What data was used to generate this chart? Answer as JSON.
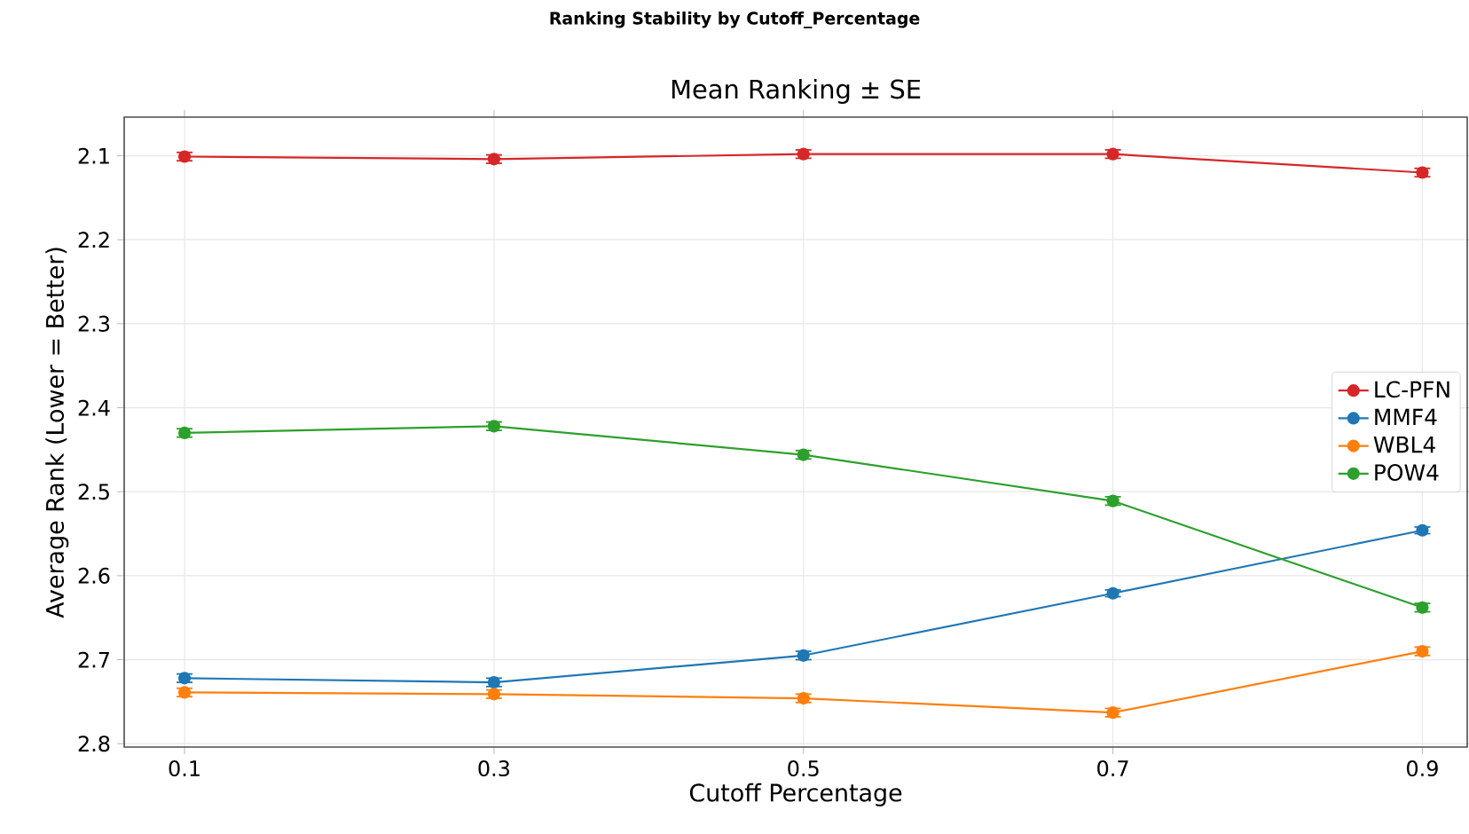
{
  "chart_data": {
    "type": "line",
    "title": "Ranking Stability by Cutoff_Percentage",
    "subtitle": "Mean Ranking ± SE",
    "xlabel": "Cutoff Percentage",
    "ylabel": "Average Rank (Lower = Better)",
    "x": [
      0.1,
      0.3,
      0.5,
      0.7,
      0.9
    ],
    "series": [
      {
        "name": "LC-PFN",
        "color": "#d62728",
        "values": [
          2.101,
          2.104,
          2.098,
          2.098,
          2.12
        ],
        "errors": [
          0.005,
          0.005,
          0.005,
          0.005,
          0.005
        ]
      },
      {
        "name": "MMF4",
        "color": "#1f77b4",
        "values": [
          2.722,
          2.727,
          2.695,
          2.621,
          2.546
        ],
        "errors": [
          0.005,
          0.005,
          0.005,
          0.004,
          0.004
        ]
      },
      {
        "name": "WBL4",
        "color": "#ff7f0e",
        "values": [
          2.739,
          2.741,
          2.746,
          2.763,
          2.69
        ],
        "errors": [
          0.005,
          0.005,
          0.005,
          0.005,
          0.005
        ]
      },
      {
        "name": "POW4",
        "color": "#2ca02c",
        "values": [
          2.43,
          2.422,
          2.456,
          2.511,
          2.638
        ],
        "errors": [
          0.005,
          0.005,
          0.005,
          0.005,
          0.005
        ]
      }
    ],
    "xlim": [
      0.061,
      0.929
    ],
    "ylim": [
      2.804,
      2.054
    ],
    "xticks": [
      0.1,
      0.3,
      0.5,
      0.7,
      0.9
    ],
    "yticks": [
      2.1,
      2.2,
      2.3,
      2.4,
      2.5,
      2.6,
      2.7,
      2.8
    ],
    "grid": true,
    "legend": "right",
    "marker": "circle",
    "line_style": "solid"
  }
}
